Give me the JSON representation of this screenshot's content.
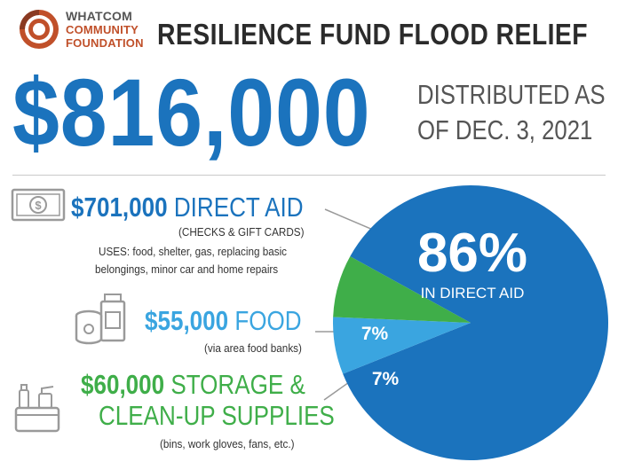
{
  "logo": {
    "line1": "WHATCOM",
    "line2": "COMMUNITY",
    "line3": "FOUNDATION"
  },
  "title": "RESILIENCE FUND FLOOD RELIEF",
  "total": {
    "amount": "$816,000",
    "caption_line1": "DISTRIBUTED AS",
    "caption_line2": "OF DEC. 3, 2021"
  },
  "items": [
    {
      "amount": "$701,000",
      "label": "DIRECT AID",
      "note": "(CHECKS & GIFT CARDS)",
      "uses_line1": "USES: food, shelter, gas, replacing basic",
      "uses_line2": "belongings, minor car and home repairs",
      "icon": "money-icon"
    },
    {
      "amount": "$55,000",
      "label": "FOOD",
      "note": "(via area food banks)",
      "icon": "food-cans-icon"
    },
    {
      "amount": "$60,000",
      "label_line1": "STORAGE &",
      "label_line2": "CLEAN-UP SUPPLIES",
      "note": "(bins, work gloves, fans, etc.)",
      "icon": "cleaning-caddy-icon"
    }
  ],
  "colors": {
    "direct_aid": "#1b73bd",
    "food": "#3aa5e0",
    "supplies": "#3fae49",
    "brand_text": "#c0502a"
  },
  "chart_data": {
    "type": "pie",
    "categories": [
      "Direct Aid",
      "Food",
      "Storage & Clean-up Supplies"
    ],
    "values": [
      701000,
      55000,
      60000
    ],
    "percent_labels": [
      "86%",
      "7%",
      "7%"
    ],
    "sublabels": [
      "IN DIRECT AID",
      "",
      ""
    ],
    "colors": [
      "#1b73bd",
      "#3aa5e0",
      "#3fae49"
    ]
  }
}
